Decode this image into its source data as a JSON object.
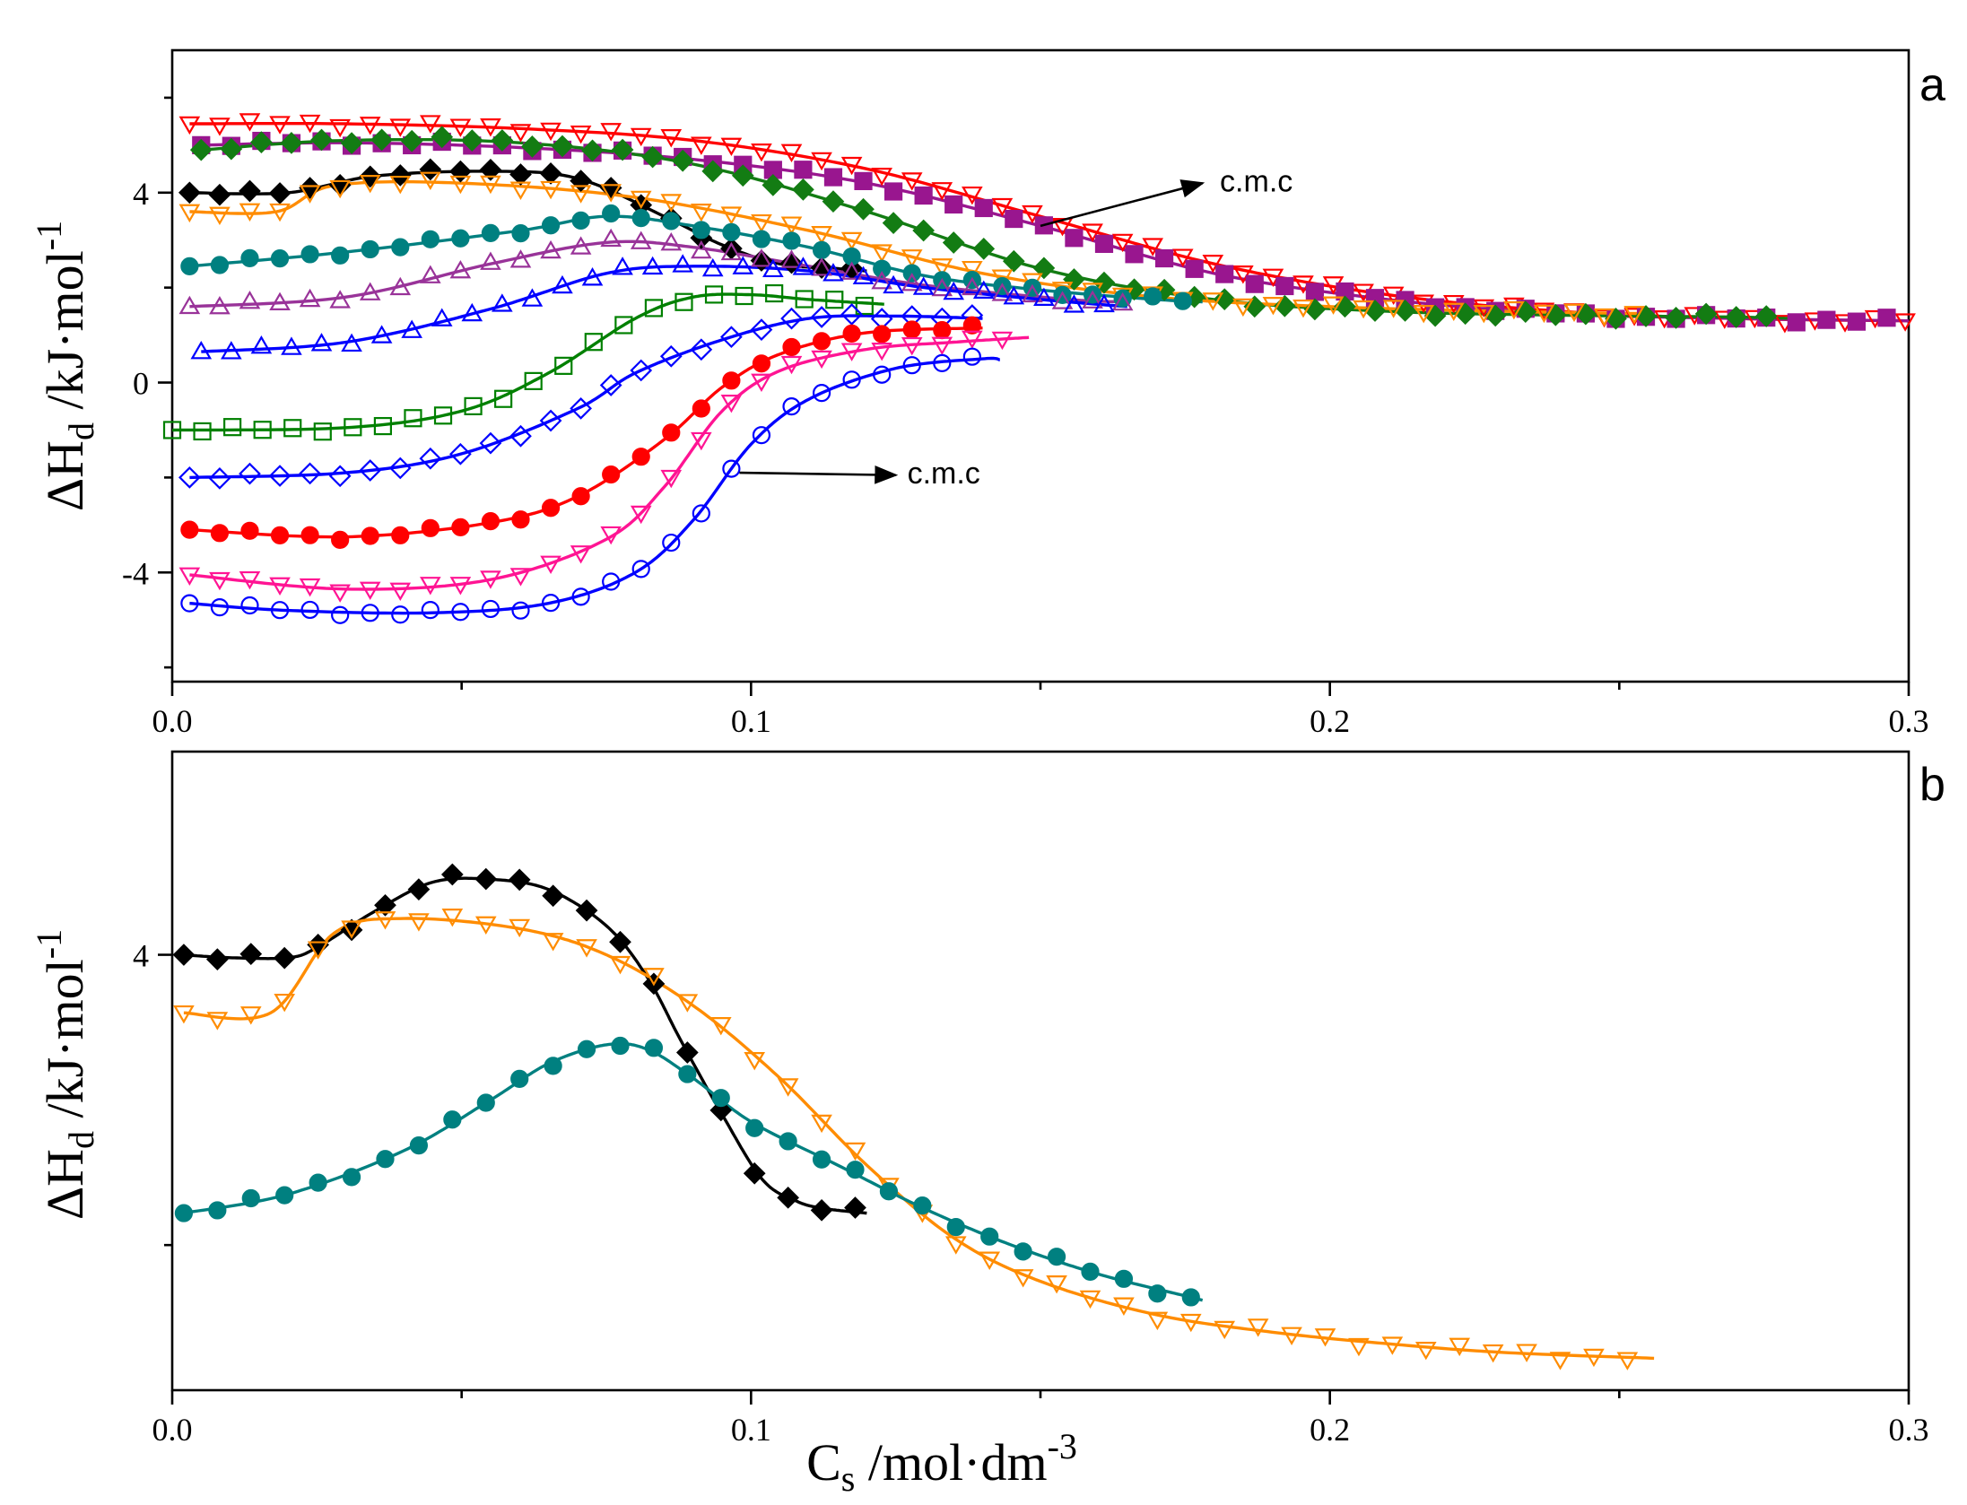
{
  "chart_data": [
    {
      "type": "line",
      "panel": "a",
      "xlabel": "C_s /mol·dm^-3",
      "ylabel": "ΔH_d /kJ·mol^-1",
      "xlim": [
        0,
        0.3
      ],
      "ylim": [
        -6.3,
        7.0
      ],
      "x_ticks": [
        0.0,
        0.1,
        0.2,
        0.3
      ],
      "x_tick_labels": [
        "0.0",
        "0.1",
        "0.2",
        "0.3"
      ],
      "x_minor_ticks": [
        0.05,
        0.15,
        0.25
      ],
      "y_ticks": [
        -4,
        0,
        4
      ],
      "y_tick_labels": [
        "-4",
        "0",
        "4"
      ],
      "y_minor_ticks": [
        -6,
        -2,
        2,
        6
      ],
      "series": [
        {
          "name": "s1",
          "color": "#ff0000",
          "marker": "triangle-down-open",
          "points": [
            [
              0.003,
              5.45
            ],
            [
              0.03,
              5.45
            ],
            [
              0.06,
              5.35
            ],
            [
              0.09,
              5.1
            ],
            [
              0.12,
              4.5
            ],
            [
              0.15,
              3.5
            ],
            [
              0.18,
              2.5
            ],
            [
              0.21,
              1.85
            ],
            [
              0.24,
              1.5
            ],
            [
              0.27,
              1.35
            ],
            [
              0.3,
              1.3
            ]
          ]
        },
        {
          "name": "s2",
          "color": "#99168f",
          "marker": "square-filled",
          "points": [
            [
              0.005,
              5.0
            ],
            [
              0.03,
              5.05
            ],
            [
              0.06,
              4.95
            ],
            [
              0.09,
              4.7
            ],
            [
              0.12,
              4.2
            ],
            [
              0.15,
              3.3
            ],
            [
              0.18,
              2.3
            ],
            [
              0.21,
              1.75
            ],
            [
              0.24,
              1.45
            ],
            [
              0.27,
              1.35
            ],
            [
              0.3,
              1.3
            ]
          ]
        },
        {
          "name": "s3",
          "color": "#137c13",
          "marker": "diamond-filled",
          "points": [
            [
              0.005,
              4.9
            ],
            [
              0.03,
              5.1
            ],
            [
              0.06,
              5.05
            ],
            [
              0.09,
              4.6
            ],
            [
              0.12,
              3.6
            ],
            [
              0.15,
              2.4
            ],
            [
              0.18,
              1.75
            ],
            [
              0.21,
              1.5
            ],
            [
              0.24,
              1.42
            ],
            [
              0.27,
              1.38
            ],
            [
              0.28,
              1.35
            ]
          ]
        },
        {
          "name": "s4",
          "color": "#000000",
          "marker": "diamond-filled",
          "points": [
            [
              0.003,
              4.0
            ],
            [
              0.02,
              4.0
            ],
            [
              0.035,
              4.35
            ],
            [
              0.055,
              4.45
            ],
            [
              0.07,
              4.3
            ],
            [
              0.085,
              3.5
            ],
            [
              0.095,
              2.9
            ],
            [
              0.105,
              2.5
            ],
            [
              0.115,
              2.4
            ],
            [
              0.12,
              2.35
            ]
          ]
        },
        {
          "name": "s5",
          "color": "#ff8c00",
          "marker": "triangle-down-open",
          "points": [
            [
              0.003,
              3.6
            ],
            [
              0.018,
              3.6
            ],
            [
              0.028,
              4.15
            ],
            [
              0.05,
              4.2
            ],
            [
              0.08,
              3.9
            ],
            [
              0.11,
              3.2
            ],
            [
              0.14,
              2.3
            ],
            [
              0.17,
              1.8
            ],
            [
              0.2,
              1.6
            ],
            [
              0.23,
              1.5
            ],
            [
              0.256,
              1.45
            ]
          ]
        },
        {
          "name": "s6",
          "color": "#008080",
          "marker": "circle-filled",
          "points": [
            [
              0.003,
              2.45
            ],
            [
              0.03,
              2.75
            ],
            [
              0.06,
              3.2
            ],
            [
              0.075,
              3.5
            ],
            [
              0.09,
              3.3
            ],
            [
              0.11,
              2.85
            ],
            [
              0.13,
              2.25
            ],
            [
              0.15,
              1.95
            ],
            [
              0.17,
              1.75
            ],
            [
              0.178,
              1.7
            ]
          ]
        },
        {
          "name": "s7",
          "color": "#993399",
          "marker": "triangle-up-open",
          "points": [
            [
              0.003,
              1.6
            ],
            [
              0.03,
              1.8
            ],
            [
              0.055,
              2.5
            ],
            [
              0.075,
              2.95
            ],
            [
              0.09,
              2.85
            ],
            [
              0.11,
              2.45
            ],
            [
              0.13,
              2.05
            ],
            [
              0.155,
              1.75
            ],
            [
              0.165,
              1.7
            ]
          ]
        },
        {
          "name": "s8",
          "color": "#0000ff",
          "marker": "triangle-up-open",
          "points": [
            [
              0.005,
              0.65
            ],
            [
              0.03,
              0.85
            ],
            [
              0.055,
              1.55
            ],
            [
              0.075,
              2.3
            ],
            [
              0.09,
              2.45
            ],
            [
              0.11,
              2.35
            ],
            [
              0.13,
              2.0
            ],
            [
              0.15,
              1.75
            ],
            [
              0.165,
              1.6
            ]
          ]
        },
        {
          "name": "s9",
          "color": "#008000",
          "marker": "square-open",
          "points": [
            [
              0.0,
              -1.0
            ],
            [
              0.03,
              -0.95
            ],
            [
              0.05,
              -0.6
            ],
            [
              0.065,
              0.2
            ],
            [
              0.08,
              1.35
            ],
            [
              0.09,
              1.8
            ],
            [
              0.1,
              1.85
            ],
            [
              0.11,
              1.75
            ],
            [
              0.123,
              1.65
            ]
          ]
        },
        {
          "name": "s10",
          "color": "#0000ff",
          "marker": "diamond-open",
          "points": [
            [
              0.003,
              -2.0
            ],
            [
              0.03,
              -1.9
            ],
            [
              0.05,
              -1.5
            ],
            [
              0.07,
              -0.55
            ],
            [
              0.08,
              0.2
            ],
            [
              0.095,
              0.9
            ],
            [
              0.11,
              1.35
            ],
            [
              0.125,
              1.4
            ],
            [
              0.14,
              1.35
            ]
          ]
        },
        {
          "name": "s11",
          "color": "#ff0000",
          "marker": "circle-filled",
          "points": [
            [
              0.003,
              -3.1
            ],
            [
              0.03,
              -3.25
            ],
            [
              0.055,
              -2.95
            ],
            [
              0.07,
              -2.4
            ],
            [
              0.085,
              -1.2
            ],
            [
              0.095,
              -0.1
            ],
            [
              0.105,
              0.6
            ],
            [
              0.12,
              1.05
            ],
            [
              0.14,
              1.15
            ]
          ]
        },
        {
          "name": "s12",
          "color": "#ff1493",
          "marker": "triangle-down-open",
          "points": [
            [
              0.003,
              -4.05
            ],
            [
              0.03,
              -4.35
            ],
            [
              0.055,
              -4.15
            ],
            [
              0.075,
              -3.3
            ],
            [
              0.085,
              -2.2
            ],
            [
              0.095,
              -0.6
            ],
            [
              0.105,
              0.25
            ],
            [
              0.12,
              0.7
            ],
            [
              0.135,
              0.85
            ],
            [
              0.148,
              0.95
            ]
          ]
        },
        {
          "name": "s13",
          "color": "#0000ff",
          "marker": "circle-open",
          "points": [
            [
              0.003,
              -4.65
            ],
            [
              0.02,
              -4.8
            ],
            [
              0.045,
              -4.85
            ],
            [
              0.065,
              -4.65
            ],
            [
              0.08,
              -4.0
            ],
            [
              0.09,
              -2.9
            ],
            [
              0.1,
              -1.3
            ],
            [
              0.11,
              -0.35
            ],
            [
              0.125,
              0.3
            ],
            [
              0.14,
              0.5
            ],
            [
              0.143,
              0.48
            ]
          ]
        }
      ],
      "annotations": [
        {
          "text": "c.m.c",
          "arrow_from": [
            0.15,
            3.3
          ],
          "arrow_to": [
            0.178,
            4.2
          ],
          "label_at": [
            0.181,
            4.25
          ]
        },
        {
          "text": "c.m.c",
          "arrow_from": [
            0.098,
            -1.9
          ],
          "arrow_to": [
            0.125,
            -1.95
          ],
          "label_at": [
            0.127,
            -1.9
          ]
        }
      ]
    },
    {
      "type": "line",
      "panel": "b",
      "xlabel": "C_s /mol·dm^-3",
      "ylabel": "ΔH_d /kJ·mol^-1",
      "xlim": [
        0,
        0.3
      ],
      "ylim": [
        1.0,
        5.4
      ],
      "x_ticks": [
        0.0,
        0.1,
        0.2,
        0.3
      ],
      "x_tick_labels": [
        "0.0",
        "0.1",
        "0.2",
        "0.3"
      ],
      "x_minor_ticks": [
        0.05,
        0.15,
        0.25
      ],
      "y_ticks": [
        4
      ],
      "y_tick_labels": [
        "4"
      ],
      "y_minor_ticks": [
        2
      ],
      "series": [
        {
          "name": "black",
          "color": "#000000",
          "marker": "diamond-filled",
          "points": [
            [
              0.002,
              4.0
            ],
            [
              0.01,
              3.98
            ],
            [
              0.02,
              3.98
            ],
            [
              0.025,
              4.05
            ],
            [
              0.035,
              4.3
            ],
            [
              0.045,
              4.5
            ],
            [
              0.055,
              4.52
            ],
            [
              0.065,
              4.45
            ],
            [
              0.075,
              4.2
            ],
            [
              0.082,
              3.85
            ],
            [
              0.088,
              3.4
            ],
            [
              0.095,
              2.9
            ],
            [
              0.102,
              2.45
            ],
            [
              0.108,
              2.3
            ],
            [
              0.113,
              2.25
            ],
            [
              0.12,
              2.22
            ]
          ]
        },
        {
          "name": "orange",
          "color": "#ff8c00",
          "marker": "triangle-down-open",
          "points": [
            [
              0.002,
              3.6
            ],
            [
              0.017,
              3.6
            ],
            [
              0.028,
              4.15
            ],
            [
              0.04,
              4.25
            ],
            [
              0.06,
              4.18
            ],
            [
              0.075,
              4.0
            ],
            [
              0.09,
              3.65
            ],
            [
              0.105,
              3.15
            ],
            [
              0.12,
              2.55
            ],
            [
              0.135,
              2.05
            ],
            [
              0.15,
              1.75
            ],
            [
              0.17,
              1.52
            ],
            [
              0.19,
              1.4
            ],
            [
              0.21,
              1.32
            ],
            [
              0.23,
              1.26
            ],
            [
              0.256,
              1.22
            ]
          ]
        },
        {
          "name": "teal",
          "color": "#008080",
          "marker": "circle-filled",
          "points": [
            [
              0.002,
              2.22
            ],
            [
              0.02,
              2.35
            ],
            [
              0.04,
              2.65
            ],
            [
              0.055,
              3.0
            ],
            [
              0.065,
              3.25
            ],
            [
              0.075,
              3.38
            ],
            [
              0.082,
              3.35
            ],
            [
              0.09,
              3.15
            ],
            [
              0.1,
              2.85
            ],
            [
              0.115,
              2.55
            ],
            [
              0.13,
              2.25
            ],
            [
              0.145,
              2.0
            ],
            [
              0.16,
              1.8
            ],
            [
              0.175,
              1.65
            ],
            [
              0.178,
              1.62
            ]
          ]
        }
      ]
    }
  ],
  "panel_letters": {
    "a": "a",
    "b": "b"
  },
  "axis_text": {
    "ylabel_main": "ΔH",
    "ylabel_sub": "d",
    "ylabel_rest": " /kJ·mol",
    "ylabel_sup": "-1",
    "xlabel_main": "C",
    "xlabel_sub": "s",
    "xlabel_rest": " /mol·dm",
    "xlabel_sup": "-3"
  }
}
